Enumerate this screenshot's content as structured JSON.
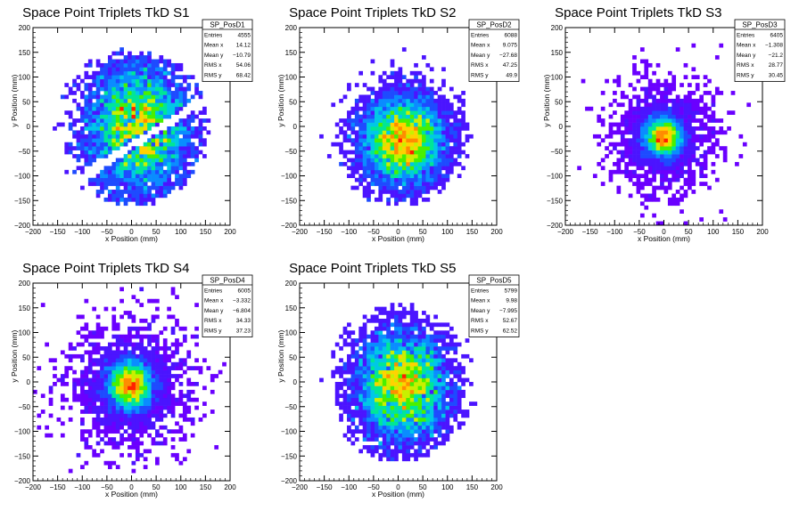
{
  "palette": [
    "#6a00ff",
    "#4b14ff",
    "#1e4bff",
    "#0a8cff",
    "#00c8e6",
    "#00e696",
    "#48f000",
    "#c8f000",
    "#ffd200",
    "#ff8c00",
    "#ff2000"
  ],
  "chart_data": [
    {
      "type": "heatmap",
      "title": "Space Point Triplets TkD S1",
      "xlabel": "x Position (mm)",
      "ylabel": "y Position (mm)",
      "xlim": [
        -200,
        200
      ],
      "ylim": [
        -200,
        200
      ],
      "xticks": [
        "−200",
        "−150",
        "−100",
        "−50",
        "0",
        "50",
        "100",
        "150",
        "200"
      ],
      "yticks": [
        "−200",
        "−150",
        "−100",
        "−50",
        "0",
        "50",
        "100",
        "150",
        "200"
      ],
      "stats": {
        "name": "SP_PosD1",
        "rows": [
          {
            "label": "Entries",
            "value": "4555"
          },
          {
            "label": "Mean x",
            "value": "14.12"
          },
          {
            "label": "Mean y",
            "value": "−10.79"
          },
          {
            "label": "RMS x",
            "value": "54.06"
          },
          {
            "label": "RMS y",
            "value": "68.42"
          }
        ]
      },
      "entries": 4555,
      "mean_x": 14.12,
      "mean_y": -10.79,
      "rms_x": 54.06,
      "rms_y": 68.42,
      "distribution": "gap",
      "seed": 11
    },
    {
      "type": "heatmap",
      "title": "Space Point Triplets TkD S2",
      "xlabel": "x Position (mm)",
      "ylabel": "y Position (mm)",
      "xlim": [
        -200,
        200
      ],
      "ylim": [
        -200,
        200
      ],
      "xticks": [
        "−200",
        "−150",
        "−100",
        "−50",
        "0",
        "50",
        "100",
        "150",
        "200"
      ],
      "yticks": [
        "−200",
        "−150",
        "−100",
        "−50",
        "0",
        "50",
        "100",
        "150",
        "200"
      ],
      "stats": {
        "name": "SP_PosD2",
        "rows": [
          {
            "label": "Entries",
            "value": "6088"
          },
          {
            "label": "Mean x",
            "value": "9.075"
          },
          {
            "label": "Mean y",
            "value": "−27.68"
          },
          {
            "label": "RMS x",
            "value": "47.25"
          },
          {
            "label": "RMS y",
            "value": "49.9"
          }
        ]
      },
      "entries": 6088,
      "mean_x": 9.075,
      "mean_y": -27.68,
      "rms_x": 47.25,
      "rms_y": 49.9,
      "distribution": "broad",
      "seed": 23
    },
    {
      "type": "heatmap",
      "title": "Space Point Triplets TkD S3",
      "xlabel": "x Position (mm)",
      "ylabel": "y Position (mm)",
      "xlim": [
        -200,
        200
      ],
      "ylim": [
        -200,
        200
      ],
      "xticks": [
        "−200",
        "−150",
        "−100",
        "−50",
        "0",
        "50",
        "100",
        "150",
        "200"
      ],
      "yticks": [
        "−200",
        "−150",
        "−100",
        "−50",
        "0",
        "50",
        "100",
        "150",
        "200"
      ],
      "stats": {
        "name": "SP_PosD3",
        "rows": [
          {
            "label": "Entries",
            "value": "6405"
          },
          {
            "label": "Mean x",
            "value": "−1.308"
          },
          {
            "label": "Mean y",
            "value": "−21.2"
          },
          {
            "label": "RMS x",
            "value": "28.77"
          },
          {
            "label": "RMS y",
            "value": "30.45"
          }
        ]
      },
      "entries": 6405,
      "mean_x": -1.308,
      "mean_y": -21.2,
      "rms_x": 28.77,
      "rms_y": 30.45,
      "distribution": "peaked",
      "seed": 37
    },
    {
      "type": "heatmap",
      "title": "Space Point Triplets TkD S4",
      "xlabel": "x Position (mm)",
      "ylabel": "y Position (mm)",
      "xlim": [
        -200,
        200
      ],
      "ylim": [
        -200,
        200
      ],
      "xticks": [
        "−200",
        "−150",
        "−100",
        "−50",
        "0",
        "50",
        "100",
        "150",
        "200"
      ],
      "yticks": [
        "−200",
        "−150",
        "−100",
        "−50",
        "0",
        "50",
        "100",
        "150",
        "200"
      ],
      "stats": {
        "name": "SP_PosD4",
        "rows": [
          {
            "label": "Entries",
            "value": "6005"
          },
          {
            "label": "Mean x",
            "value": "−3.332"
          },
          {
            "label": "Mean y",
            "value": "−6.804"
          },
          {
            "label": "RMS x",
            "value": "34.33"
          },
          {
            "label": "RMS y",
            "value": "37.23"
          }
        ]
      },
      "entries": 6005,
      "mean_x": -3.332,
      "mean_y": -6.804,
      "rms_x": 34.33,
      "rms_y": 37.23,
      "distribution": "peaked",
      "seed": 41
    },
    {
      "type": "heatmap",
      "title": "Space Point Triplets TkD S5",
      "xlabel": "x Position (mm)",
      "ylabel": "y Position (mm)",
      "xlim": [
        -200,
        200
      ],
      "ylim": [
        -200,
        200
      ],
      "xticks": [
        "−200",
        "−150",
        "−100",
        "−50",
        "0",
        "50",
        "100",
        "150",
        "200"
      ],
      "yticks": [
        "−200",
        "−150",
        "−100",
        "−50",
        "0",
        "50",
        "100",
        "150",
        "200"
      ],
      "stats": {
        "name": "SP_PosD5",
        "rows": [
          {
            "label": "Entries",
            "value": "5799"
          },
          {
            "label": "Mean x",
            "value": "9.98"
          },
          {
            "label": "Mean y",
            "value": "−7.995"
          },
          {
            "label": "RMS x",
            "value": "52.67"
          },
          {
            "label": "RMS y",
            "value": "62.52"
          }
        ]
      },
      "entries": 5799,
      "mean_x": 9.98,
      "mean_y": -7.995,
      "rms_x": 52.67,
      "rms_y": 62.52,
      "distribution": "broad",
      "seed": 53
    }
  ]
}
